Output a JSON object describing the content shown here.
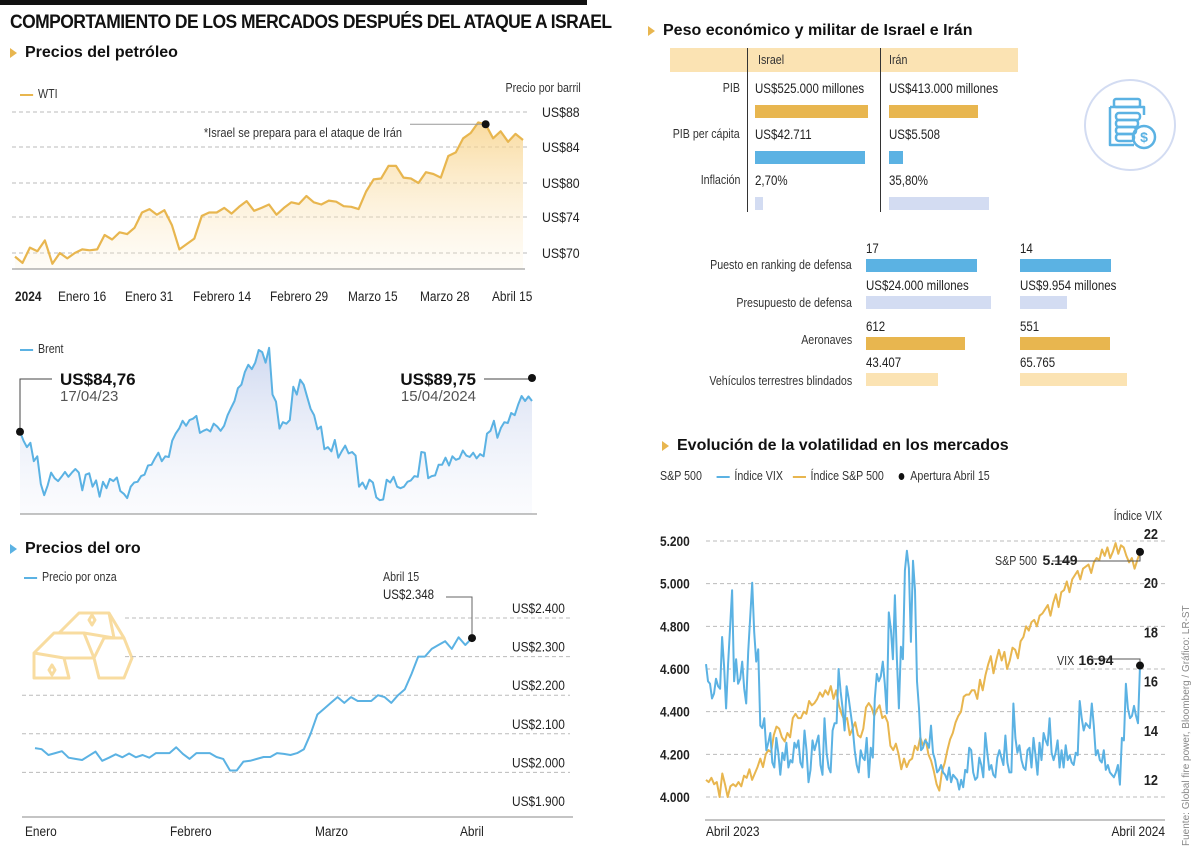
{
  "title": "COMPORTAMIENTO DE LOS MERCADOS DESPUÉS DEL ATAQUE A ISRAEL",
  "source": "Fuente: Global fire power, Bloomberg / Gráfico: LR-ST",
  "colors": {
    "gold": "#e8b64f",
    "blue": "#5bb2e3",
    "lightblue": "#d3dcf2",
    "lightgold": "#fbe3b3",
    "black": "#111111"
  },
  "icons": {
    "section_marker": "triangle-right-icon",
    "money_jar": "money-jar-icon",
    "gold_bars": "gold-bars-icon"
  },
  "oil": {
    "section_title": "Precios del petróleo",
    "wti_legend": "WTI",
    "unit_label": "Precio por barril",
    "annotation": "*Israel se prepara para el ataque de Irán",
    "brent_legend": "Brent",
    "brent_start_value": "US$84,76",
    "brent_start_date": "17/04/23",
    "brent_end_value": "US$89,75",
    "brent_end_date": "15/04/2024"
  },
  "gold": {
    "section_title": "Precios del oro",
    "legend": "Precio por onza",
    "annotation_date": "Abril 15",
    "annotation_value": "US$2.348"
  },
  "comparison": {
    "section_title": "Peso económico y militar de Israel e Irán",
    "col_israel": "Israel",
    "col_iran": "Irán",
    "rows": [
      {
        "label": "PIB",
        "israel": "US$525.000 millones",
        "iran": "US$413.000 millones",
        "israel_share": 0.9,
        "iran_share": 0.71,
        "color": "gold"
      },
      {
        "label": "PIB per cápita",
        "israel": "US$42.711",
        "iran": "US$5.508",
        "israel_share": 0.88,
        "iran_share": 0.11,
        "color": "blue"
      },
      {
        "label": "Inflación",
        "israel": "2,70%",
        "iran": "35,80%",
        "israel_share": 0.06,
        "iran_share": 0.8,
        "color": "lightblue"
      }
    ],
    "military_rows": [
      {
        "label": "Puesto en ranking de defensa",
        "israel": "17",
        "iran": "14",
        "israel_share": 0.85,
        "iran_share": 0.7,
        "color": "blue"
      },
      {
        "label": "Presupuesto de defensa",
        "israel": "US$24.000 millones",
        "iran": "US$9.954 millones",
        "israel_share": 0.96,
        "iran_share": 0.36,
        "color": "lightblue"
      },
      {
        "label": "Aeronaves",
        "israel": "612",
        "iran": "551",
        "israel_share": 0.76,
        "iran_share": 0.69,
        "color": "gold"
      },
      {
        "label": "Vehículos terrestres blindados",
        "israel": "43.407",
        "iran": "65.765",
        "israel_share": 0.55,
        "iran_share": 0.82,
        "color": "lightgold"
      }
    ]
  },
  "volatility": {
    "section_title": "Evolución de la volatilidad en los mercados",
    "legend_prefix": "S&P 500",
    "legend_vix": "Índice VIX",
    "legend_sp": "Índice S&P 500",
    "legend_open": "Apertura Abril 15",
    "right_axis_title": "Índice VIX",
    "sp_label": "S&P 500",
    "sp_value": "5.149",
    "vix_label": "VIX",
    "vix_value": "16.94"
  },
  "chart_data": [
    {
      "id": "wti",
      "type": "area",
      "title": "Precios del petróleo",
      "series": [
        {
          "name": "WTI",
          "color": "#e8b64f",
          "values": [
            69.6,
            68.9,
            70.6,
            70.2,
            71.4,
            68.8,
            70.0,
            69.4,
            70.0,
            70.4,
            70.3,
            70.4,
            72.0,
            71.5,
            72.3,
            72.1,
            72.8,
            74.8,
            75.4,
            74.4,
            75.2,
            73.1,
            70.4,
            71.0,
            71.6,
            74.2,
            74.8,
            74.8,
            75.6,
            74.6,
            75.8,
            76.8,
            75.1,
            75.6,
            76.2,
            74.4,
            75.6,
            76.6,
            76.3,
            77.7,
            76.6,
            76.2,
            76.9,
            76.7,
            75.9,
            75.8,
            75.4,
            78.5,
            80.4,
            80.5,
            81.9,
            81.9,
            80.6,
            80.5,
            80.0,
            81.2,
            81.0,
            80.6,
            83.0,
            83.4,
            85.0,
            85.6,
            86.8,
            86.6,
            85.0,
            85.8,
            84.6,
            85.5,
            84.8
          ]
        }
      ],
      "x_tick_labels": [
        "2024",
        "Enero 16",
        "Enero 31",
        "Febrero 14",
        "Febrero 29",
        "Marzo 15",
        "Marzo 28",
        "Abril 15"
      ],
      "y_tick_labels": [
        "US$88",
        "US$84",
        "US$80",
        "US$74",
        "US$70"
      ],
      "y_tick_values": [
        88,
        84,
        80,
        74,
        70
      ],
      "ylim": [
        68,
        88
      ],
      "highlight_point": {
        "index": 63,
        "label": "*Israel se prepara para el ataque de Irán"
      },
      "grid": true
    },
    {
      "id": "brent",
      "type": "area",
      "title": "Brent",
      "series": [
        {
          "name": "Brent",
          "color": "#5bb2e3",
          "values": [
            84.76,
            83.5,
            82.6,
            83.2,
            80.6,
            81.3,
            77.4,
            75.8,
            77.2,
            79.0,
            78.2,
            77.8,
            78.4,
            79.1,
            78.4,
            79.0,
            79.5,
            79.0,
            76.5,
            78.7,
            78.9,
            77.0,
            77.9,
            75.6,
            77.7,
            76.8,
            78.1,
            77.8,
            78.3,
            76.4,
            76.0,
            75.4,
            77.0,
            77.6,
            77.7,
            78.5,
            78.7,
            80.0,
            80.1,
            81.0,
            81.8,
            80.6,
            81.3,
            81.2,
            83.5,
            84.5,
            85.2,
            86.3,
            85.6,
            86.4,
            86.6,
            87.0,
            84.6,
            84.9,
            85.1,
            84.8,
            85.9,
            85.5,
            84.9,
            85.6,
            87.1,
            88.1,
            89.1,
            90.9,
            91.4,
            93.2,
            94.2,
            93.6,
            94.5,
            96.3,
            96.0,
            94.5,
            96.6,
            90.0,
            89.0,
            85.2,
            86.1,
            85.9,
            86.4,
            91.1,
            90.0,
            92.1,
            91.4,
            89.7,
            88.0,
            87.1,
            85.1,
            85.5,
            82.3,
            82.6,
            82.0,
            83.6,
            81.1,
            82.0,
            82.8,
            81.7,
            81.9,
            81.4,
            77.0,
            77.6,
            76.7,
            78.0,
            77.6,
            75.5,
            75.1,
            75.2,
            78.0,
            77.6,
            78.4,
            77.0,
            76.8,
            77.0,
            77.7,
            77.9,
            78.5,
            78.4,
            81.9,
            81.8,
            78.2,
            78.5,
            78.6,
            80.1,
            80.1,
            81.1,
            80.0,
            81.3,
            80.8,
            81.0,
            82.1,
            81.4,
            81.2,
            81.8,
            81.0,
            81.6,
            81.3,
            84.5,
            84.9,
            86.3,
            83.9,
            85.3,
            86.1,
            86.0,
            87.4,
            87.1,
            88.6,
            89.8,
            89.1,
            89.75,
            89.1
          ]
        }
      ],
      "annotations": [
        {
          "index": 0,
          "value": "US$84,76",
          "date": "17/04/23"
        },
        {
          "index": 147,
          "value": "US$89,75",
          "date": "15/04/2024"
        }
      ],
      "ylim": [
        74,
        97
      ],
      "grid": false
    },
    {
      "id": "gold",
      "type": "line",
      "title": "Precios del oro",
      "series": [
        {
          "name": "Precio por onza",
          "color": "#5bb2e3",
          "values": [
            2063,
            2060,
            2045,
            2050,
            2055,
            2038,
            2035,
            2032,
            2043,
            2054,
            2030,
            2038,
            2047,
            2039,
            2049,
            2039,
            2045,
            2038,
            2050,
            2050,
            2050,
            2065,
            2048,
            2035,
            2050,
            2050,
            2050,
            2040,
            2035,
            2005,
            2005,
            2028,
            2030,
            2035,
            2040,
            2040,
            2050,
            2048,
            2045,
            2050,
            2060,
            2100,
            2150,
            2165,
            2180,
            2195,
            2180,
            2195,
            2185,
            2185,
            2185,
            2200,
            2195,
            2180,
            2200,
            2215,
            2255,
            2300,
            2300,
            2320,
            2330,
            2340,
            2320,
            2350,
            2330,
            2348
          ]
        }
      ],
      "x_tick_labels": [
        "Enero",
        "Febrero",
        "Marzo",
        "Abril"
      ],
      "y_tick_labels": [
        "US$2.400",
        "US$2.300",
        "US$2.200",
        "US$2.100",
        "US$2.000",
        "US$1.900"
      ],
      "y_tick_values": [
        2400,
        2300,
        2200,
        2100,
        2000,
        1900
      ],
      "ylim": [
        1890,
        2420
      ],
      "highlight_point": {
        "index": 65,
        "date": "Abril 15",
        "value": "US$2.348"
      },
      "grid": true
    },
    {
      "id": "volatility",
      "type": "line",
      "title": "Evolución de la volatilidad en los mercados",
      "x_tick_labels": [
        "Abril 2023",
        "Abril 2024"
      ],
      "left_axis": {
        "title": "S&P 500",
        "tick_labels": [
          "5.200",
          "5.000",
          "4.800",
          "4.600",
          "4.400",
          "4.200",
          "4.000"
        ],
        "tick_values": [
          5200,
          5000,
          4800,
          4600,
          4400,
          4200,
          4000
        ],
        "ylim": [
          4000,
          5200
        ]
      },
      "right_axis": {
        "title": "Índice VIX",
        "tick_labels": [
          "22",
          "20",
          "18",
          "16",
          "14",
          "12"
        ],
        "tick_values": [
          22,
          20,
          18,
          16,
          14,
          12
        ],
        "ylim": [
          11.6,
          22
        ]
      },
      "series": [
        {
          "name": "Índice VIX",
          "axis": "right",
          "color": "#5bb2e3",
          "values": [
            17.0,
            16.3,
            16.2,
            15.6,
            15.8,
            16.4,
            16.1,
            16.0,
            18.1,
            16.9,
            15.2,
            17.0,
            18.5,
            20.0,
            16.3,
            17.2,
            16.2,
            16.4,
            17.1,
            16.0,
            15.4,
            17.5,
            18.9,
            20.3,
            18.3,
            17.1,
            17.6,
            14.5,
            14.4,
            14.8,
            13.5,
            13.8,
            14.2,
            13.0,
            12.8,
            14.0,
            13.4,
            12.5,
            13.4,
            13.1,
            13.8,
            12.8,
            13.1,
            13.0,
            13.8,
            13.6,
            13.9,
            13.0,
            12.8,
            14.3,
            13.5,
            12.2,
            12.7,
            13.9,
            13.5,
            13.8,
            14.1,
            12.9,
            12.5,
            14.8,
            13.4,
            12.8,
            12.6,
            14.3,
            14.6,
            14.6,
            16.8,
            15.9,
            15.2,
            14.3,
            16.1,
            15.6,
            15.0,
            14.4,
            13.5,
            12.9,
            12.6,
            13.5,
            13.2,
            13.1,
            14.0,
            12.4,
            13.6,
            13.2,
            15.6,
            16.6,
            16.3,
            16.5,
            17.1,
            16.2,
            15.0,
            19.1,
            18.4,
            17.2,
            19.8,
            17.2,
            15.2,
            17.7,
            17.2,
            20.8,
            21.6,
            20.9,
            17.9,
            21.2,
            20.0,
            16.3,
            15.2,
            13.5,
            13.6,
            13.9,
            13.8,
            13.6,
            14.5,
            13.4,
            13.1,
            12.6,
            12.7,
            12.9,
            12.6,
            12.5,
            12.3,
            12.8,
            12.2,
            12.5,
            12.4,
            12.3,
            11.9,
            12.3,
            12.0,
            12.7,
            12.6,
            13.6,
            13.5,
            12.6,
            12.3,
            12.4,
            13.2,
            12.9,
            12.4,
            14.2,
            13.4,
            12.7,
            12.9,
            12.5,
            12.4,
            13.2,
            13.5,
            13.2,
            12.9,
            14.1,
            13.0,
            12.6,
            12.6,
            15.4,
            14.0,
            13.4,
            13.7,
            13.1,
            12.8,
            12.7,
            13.5,
            13.6,
            12.8,
            14.0,
            13.3,
            12.5,
            13.8,
            13.1,
            14.2,
            13.9,
            13.7,
            14.8,
            13.4,
            13.1,
            13.4,
            13.9,
            12.8,
            13.5,
            12.8,
            13.7,
            13.1,
            13.3,
            13.0,
            12.9,
            13.4,
            13.3,
            15.5,
            14.8,
            14.3,
            14.6,
            14.5,
            14.4,
            15.4,
            14.5,
            13.3,
            13.5,
            13.1,
            13.0,
            13.5,
            12.7,
            12.9,
            12.6,
            12.5,
            12.4,
            12.6,
            12.9,
            12.1,
            14.0,
            13.9,
            16.2,
            15.2,
            14.8,
            14.9,
            15.3,
            14.9,
            14.6,
            16.94
          ]
        },
        {
          "name": "Índice S&P 500",
          "axis": "left",
          "color": "#e8b64f",
          "values": [
            4080,
            4070,
            4090,
            4060,
            4070,
            4000,
            4110,
            4060,
            4000,
            4050,
            4060,
            4050,
            4070,
            4050,
            4100,
            4090,
            4130,
            4080,
            4110,
            4140,
            4180,
            4140,
            4200,
            4220,
            4210,
            4290,
            4330,
            4320,
            4280,
            4260,
            4300,
            4280,
            4370,
            4390,
            4370,
            4370,
            4400,
            4390,
            4450,
            4430,
            4440,
            4460,
            4490,
            4470,
            4500,
            4480,
            4520,
            4460,
            4500,
            4430,
            4390,
            4360,
            4370,
            4290,
            4320,
            4350,
            4290,
            4280,
            4320,
            4420,
            4440,
            4420,
            4380,
            4410,
            4430,
            4370,
            4380,
            4350,
            4240,
            4220,
            4250,
            4200,
            4130,
            4180,
            4140,
            4170,
            4180,
            4240,
            4220,
            4280,
            4240,
            4270,
            4200,
            4170,
            4120,
            4060,
            4030,
            4120,
            4160,
            4220,
            4270,
            4300,
            4350,
            4380,
            4400,
            4470,
            4480,
            4480,
            4500,
            4500,
            4460,
            4550,
            4500,
            4570,
            4620,
            4660,
            4580,
            4640,
            4690,
            4640,
            4680,
            4600,
            4640,
            4700,
            4690,
            4650,
            4730,
            4750,
            4800,
            4780,
            4820,
            4830,
            4800,
            4850,
            4860,
            4880,
            4900,
            4850,
            4910,
            4950,
            4890,
            4960,
            4970,
            5010,
            4960,
            5020,
            5040,
            5060,
            5020,
            5070,
            5080,
            5090,
            5050,
            5100,
            5120,
            5110,
            5160,
            5130,
            5170,
            5120,
            5150,
            5190,
            5140,
            5180,
            5170,
            5130,
            5100,
            5120,
            5070,
            5110,
            5149
          ]
        }
      ],
      "annotations": [
        {
          "series": "Índice S&P 500",
          "label": "S&P 500",
          "value": "5.149"
        },
        {
          "series": "Índice VIX",
          "label": "VIX",
          "value": "16.94"
        }
      ],
      "grid": true
    }
  ]
}
